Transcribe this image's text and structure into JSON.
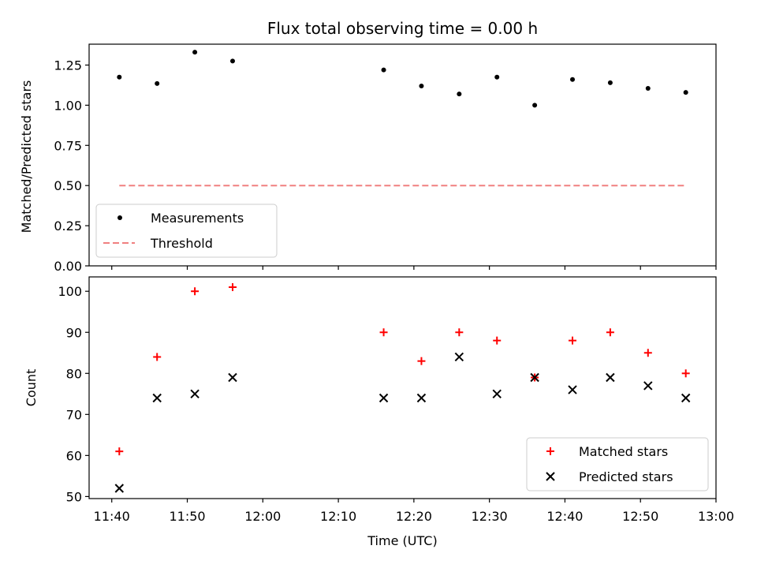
{
  "chart_data": [
    {
      "type": "scatter",
      "title": "Flux total observing time = 0.00 h",
      "xlabel": "",
      "ylabel": "Matched/Predicted stars",
      "xlim": [
        "11:37",
        "13:00"
      ],
      "ylim": [
        0,
        1.38
      ],
      "yticks": [
        0.0,
        0.25,
        0.5,
        0.75,
        1.0,
        1.25
      ],
      "ytick_labels": [
        "0.00",
        "0.25",
        "0.50",
        "0.75",
        "1.00",
        "1.25"
      ],
      "legend": "lower-left",
      "grid": false,
      "series": [
        {
          "name": "Measurements",
          "marker": "dot",
          "color": "#000000",
          "x": [
            "11:41",
            "11:46",
            "11:51",
            "11:56",
            "12:16",
            "12:21",
            "12:26",
            "12:31",
            "12:36",
            "12:41",
            "12:46",
            "12:51",
            "12:56"
          ],
          "y": [
            1.175,
            1.135,
            1.33,
            1.275,
            1.22,
            1.12,
            1.07,
            1.175,
            1.0,
            1.16,
            1.14,
            1.105,
            1.08
          ]
        },
        {
          "name": "Threshold",
          "marker": "dashed-line",
          "color": "#f08080",
          "x": [
            "11:41",
            "12:56"
          ],
          "y": [
            0.5,
            0.5
          ]
        }
      ]
    },
    {
      "type": "scatter",
      "title": "",
      "xlabel": "Time (UTC)",
      "ylabel": "Count",
      "xlim": [
        "11:37",
        "13:00"
      ],
      "ylim": [
        49.5,
        103.5
      ],
      "yticks": [
        50,
        60,
        70,
        80,
        90,
        100
      ],
      "ytick_labels": [
        "50",
        "60",
        "70",
        "80",
        "90",
        "100"
      ],
      "xticks": [
        "11:40",
        "11:50",
        "12:00",
        "12:10",
        "12:20",
        "12:30",
        "12:40",
        "12:50",
        "13:00"
      ],
      "legend": "lower-right",
      "grid": false,
      "series": [
        {
          "name": "Matched stars",
          "marker": "plus",
          "color": "#ff0000",
          "x": [
            "11:41",
            "11:46",
            "11:51",
            "11:56",
            "12:16",
            "12:21",
            "12:26",
            "12:31",
            "12:36",
            "12:41",
            "12:46",
            "12:51",
            "12:56"
          ],
          "y": [
            61,
            84,
            100,
            101,
            90,
            83,
            90,
            88,
            79,
            88,
            90,
            85,
            80
          ]
        },
        {
          "name": "Predicted stars",
          "marker": "x",
          "color": "#000000",
          "x": [
            "11:41",
            "11:46",
            "11:51",
            "11:56",
            "12:16",
            "12:21",
            "12:26",
            "12:31",
            "12:36",
            "12:41",
            "12:46",
            "12:51",
            "12:56"
          ],
          "y": [
            52,
            74,
            75,
            79,
            74,
            74,
            84,
            75,
            79,
            76,
            79,
            77,
            74
          ]
        }
      ]
    }
  ]
}
